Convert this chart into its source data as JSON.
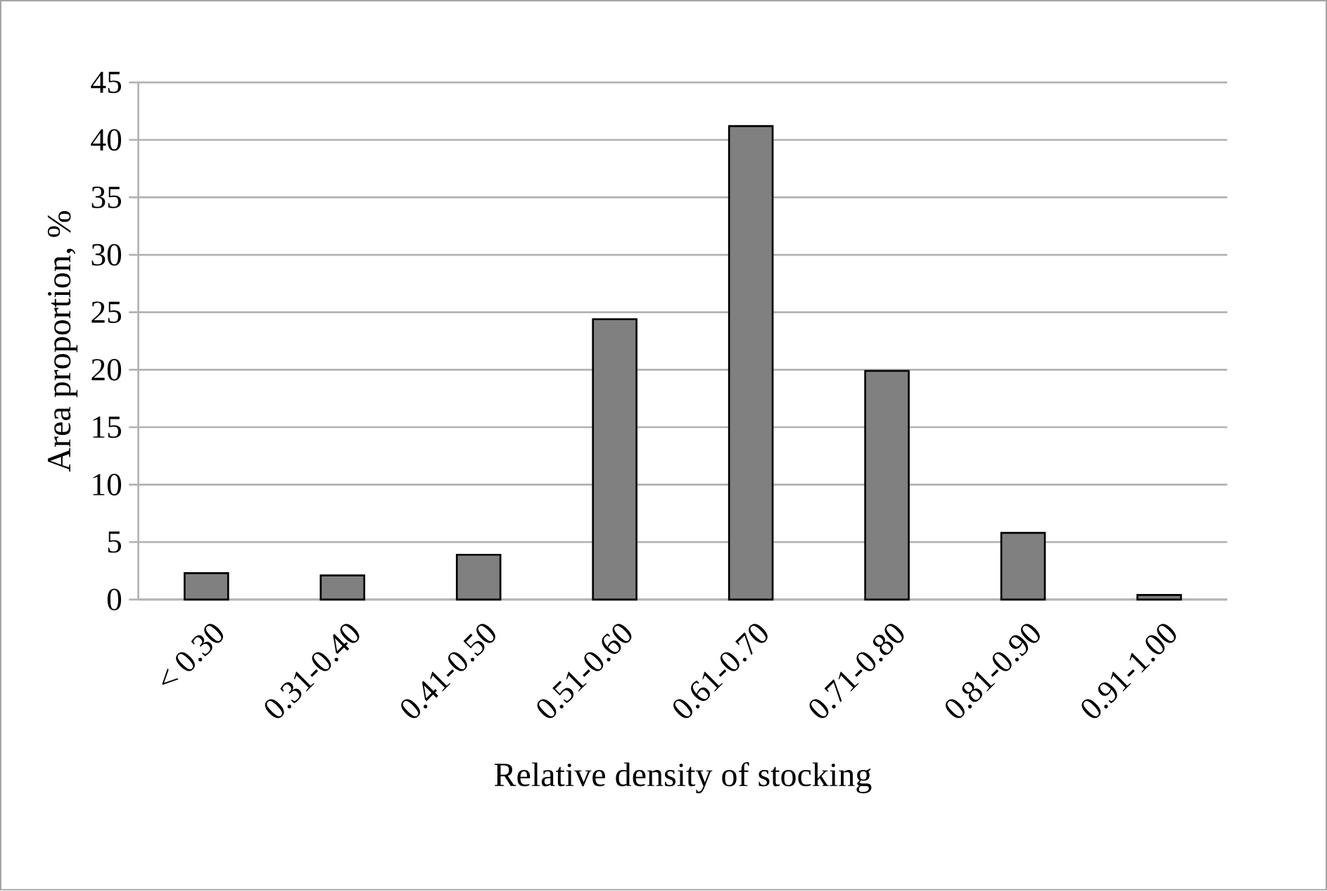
{
  "chart_data": {
    "type": "bar",
    "xlabel": "Relative density of stocking",
    "ylabel": "Area proportion, %",
    "categories": [
      "< 0.30",
      "0.31-0.40",
      "0.41-0.50",
      "0.51-0.60",
      "0.61-0.70",
      "0.71-0.80",
      "0.81-0.90",
      "0.91-1.00"
    ],
    "values": [
      2.3,
      2.1,
      3.9,
      24.4,
      41.2,
      19.9,
      5.8,
      0.4
    ],
    "color": "#808080",
    "ylim": [
      0,
      45
    ],
    "yticks": [
      0,
      5,
      10,
      15,
      20,
      25,
      30,
      35,
      40,
      45
    ],
    "grid": "y"
  }
}
